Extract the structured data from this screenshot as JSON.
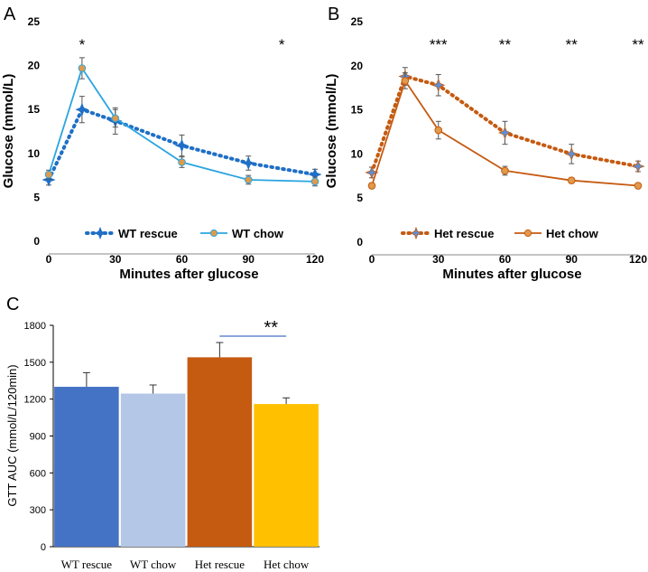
{
  "chart_data": [
    {
      "panel": "A",
      "type": "line",
      "xlabel": "Minutes after glucose",
      "ylabel": "Glucose (mmol/L)",
      "ylim": [
        0,
        25
      ],
      "yticks": [
        0,
        5,
        10,
        15,
        20,
        25
      ],
      "xlim": [
        0,
        120
      ],
      "xticks": [
        0,
        30,
        60,
        90,
        120
      ],
      "series": [
        {
          "name": "WT rescue",
          "style": "dotted",
          "color": "#1f6fc5",
          "marker": "star",
          "x": [
            0,
            15,
            30,
            60,
            90,
            120
          ],
          "y": [
            7.0,
            15.0,
            13.7,
            10.9,
            8.9,
            7.6
          ],
          "err": [
            0.6,
            1.5,
            1.5,
            1.2,
            0.8,
            0.6
          ]
        },
        {
          "name": "WT chow",
          "style": "solid",
          "color": "#2aa4e0",
          "marker": "circle",
          "x": [
            0,
            15,
            30,
            60,
            90,
            120
          ],
          "y": [
            7.6,
            19.7,
            14.0,
            9.0,
            7.0,
            6.8
          ],
          "err": [
            0.5,
            1.2,
            1.0,
            0.6,
            0.5,
            0.5
          ]
        }
      ],
      "annotations": [
        {
          "text": "*",
          "x": 15
        },
        {
          "text": "*",
          "x": 105
        }
      ]
    },
    {
      "panel": "B",
      "type": "line",
      "xlabel": "Minutes after glucose",
      "ylabel": "Glucose (mmol/L)",
      "ylim": [
        0,
        25
      ],
      "yticks": [
        0,
        5,
        10,
        15,
        20,
        25
      ],
      "xlim": [
        0,
        120
      ],
      "xticks": [
        0,
        30,
        60,
        90,
        120
      ],
      "series": [
        {
          "name": "Het rescue",
          "style": "dotted",
          "color": "#c55a11",
          "marker": "star",
          "x": [
            0,
            15,
            30,
            60,
            90,
            120
          ],
          "y": [
            7.9,
            18.8,
            17.8,
            12.4,
            10.0,
            8.6
          ],
          "err": [
            0.6,
            1.0,
            1.2,
            1.3,
            1.1,
            0.6
          ]
        },
        {
          "name": "Het chow",
          "style": "solid",
          "color": "#c55a11",
          "marker": "circle",
          "x": [
            0,
            15,
            30,
            60,
            90,
            120
          ],
          "y": [
            6.4,
            18.3,
            12.7,
            8.1,
            7.0,
            6.4
          ],
          "err": [
            0.3,
            0.9,
            1.0,
            0.5,
            0.3,
            0.2
          ]
        }
      ],
      "annotations": [
        {
          "text": "***",
          "x": 30
        },
        {
          "text": "**",
          "x": 60
        },
        {
          "text": "**",
          "x": 90
        },
        {
          "text": "**",
          "x": 120
        }
      ]
    },
    {
      "panel": "C",
      "type": "bar",
      "ylabel": "GTT AUC (mmol/L/120min)",
      "ylim": [
        0,
        1800
      ],
      "yticks": [
        0,
        300,
        600,
        900,
        1200,
        1500,
        1800
      ],
      "categories": [
        "WT rescue",
        "WT chow",
        "Het rescue",
        "Het chow"
      ],
      "values": [
        1300,
        1245,
        1540,
        1160
      ],
      "err": [
        115,
        70,
        120,
        50
      ],
      "colors": [
        "#4472c4",
        "#b4c7e7",
        "#c55a11",
        "#ffc000"
      ],
      "annotations": [
        {
          "text": "**",
          "from": "Het rescue",
          "to": "Het chow"
        }
      ]
    }
  ]
}
